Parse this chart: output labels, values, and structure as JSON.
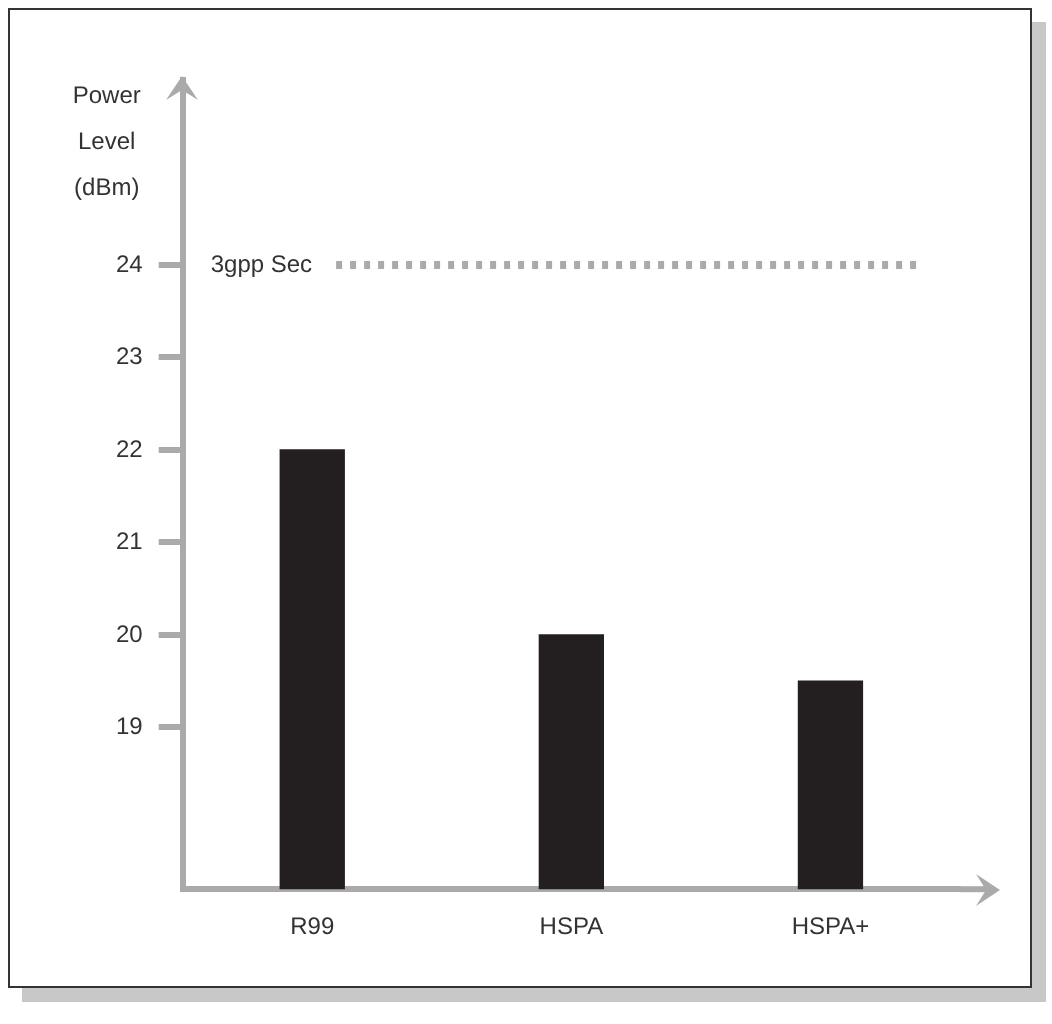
{
  "chart_data": {
    "type": "bar",
    "ylabel": "Power Level (dBm)",
    "categories": [
      "R99",
      "HSPA",
      "HSPA+"
    ],
    "values": [
      22,
      20,
      19.5
    ],
    "color": "#231f20",
    "ylim": [
      17.25,
      26
    ],
    "yticks": [
      19,
      20,
      21,
      22,
      23,
      24
    ],
    "grid": false,
    "legend": false,
    "ref_lines": [
      {
        "axis": "y",
        "value": 24,
        "label": "3gpp Sec",
        "color": "#aaaaaa",
        "line_style": "dotted"
      }
    ]
  }
}
